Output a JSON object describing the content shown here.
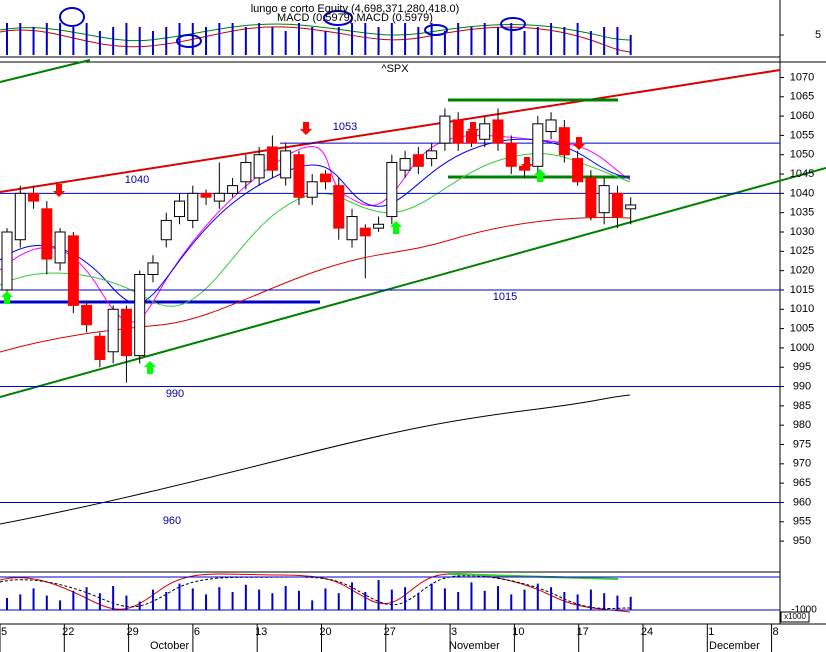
{
  "chart_data": {
    "type": "candlestick",
    "title": "^SPX",
    "top_panel": {
      "labels": [
        "lungo e corto Equity (4,698,371,280,418.0)",
        "MACD (0.5979),MACD (0.5979)"
      ],
      "ylim": [
        0,
        13
      ],
      "yticks": [
        5
      ],
      "color": "#0000cc",
      "values": [
        8,
        8,
        7,
        8,
        8,
        7,
        8,
        6,
        7,
        8,
        7,
        6,
        7,
        8,
        8,
        7,
        8,
        8,
        7,
        8,
        7,
        6,
        8,
        7,
        6,
        7,
        8,
        8,
        7,
        8,
        8,
        7,
        8,
        6,
        8,
        7,
        8,
        7,
        8,
        6,
        7,
        8,
        7,
        8,
        6,
        7,
        7,
        5
      ]
    },
    "bottom_panel": {
      "label": "x1000",
      "ylim": [
        -2000,
        2000
      ],
      "yticks": [
        -1000
      ],
      "color": "#0000cc",
      "values": [
        0,
        300,
        800,
        200,
        -200,
        600,
        900,
        400,
        1000,
        200,
        -300,
        700,
        500,
        1200,
        800,
        300,
        900,
        500,
        1100,
        700,
        400,
        1000,
        600,
        -200,
        800,
        400,
        1300,
        500,
        1500,
        700,
        900,
        400,
        1200,
        800,
        500,
        1300,
        600,
        1000,
        300,
        700,
        1200,
        900,
        500,
        300,
        700,
        400,
        200,
        100
      ]
    },
    "ylim": [
      942,
      1074
    ],
    "yticks": [
      950,
      955,
      960,
      965,
      970,
      975,
      980,
      985,
      990,
      995,
      1000,
      1005,
      1010,
      1015,
      1020,
      1025,
      1030,
      1035,
      1040,
      1045,
      1050,
      1055,
      1060,
      1065,
      1070
    ],
    "levels": [
      1040,
      1053,
      1015,
      990,
      960
    ],
    "xticks": [
      "5",
      "22",
      "29",
      "6",
      "13",
      "20",
      "27",
      "3",
      "10",
      "17",
      "24",
      "1",
      "8"
    ],
    "months": [
      "October",
      "November",
      "December"
    ],
    "up_color": "#ffffff",
    "down_color": "#ff0000",
    "open": [
      1015,
      1028,
      1040,
      1036,
      1022,
      1029,
      1011,
      1003,
      999,
      1010,
      998,
      1019,
      1028,
      1034,
      1033,
      1040,
      1038,
      1040,
      1043,
      1044,
      1052,
      1044,
      1050,
      1039,
      1045,
      1042,
      1028,
      1031,
      1031,
      1034,
      1046,
      1050,
      1049,
      1053,
      1059,
      1056,
      1054,
      1059,
      1053,
      1047,
      1047,
      1056,
      1057,
      1049,
      1044,
      1035,
      1040,
      1036
    ],
    "high": [
      1031,
      1042,
      1042,
      1038,
      1031,
      1030,
      1012,
      1004,
      1011,
      1011,
      1020,
      1024,
      1035,
      1040,
      1042,
      1041,
      1048,
      1044,
      1050,
      1052,
      1055,
      1053,
      1051,
      1045,
      1046,
      1044,
      1036,
      1032,
      1034,
      1050,
      1051,
      1052,
      1053,
      1062,
      1061,
      1058,
      1060,
      1062,
      1055,
      1049,
      1060,
      1061,
      1059,
      1051,
      1046,
      1044,
      1042,
      1039
    ],
    "low": [
      1013,
      1026,
      1036,
      1019,
      1020,
      1009,
      1004,
      995,
      996,
      991,
      996,
      1017,
      1026,
      1032,
      1031,
      1037,
      1036,
      1039,
      1041,
      1042,
      1044,
      1042,
      1037,
      1037,
      1041,
      1028,
      1026,
      1018,
      1030,
      1032,
      1044,
      1045,
      1047,
      1051,
      1051,
      1052,
      1052,
      1051,
      1045,
      1044,
      1045,
      1054,
      1048,
      1042,
      1033,
      1032,
      1031,
      1032
    ],
    "close": [
      1030,
      1040,
      1038,
      1023,
      1030,
      1011,
      1006,
      997,
      1010,
      998,
      1019,
      1022,
      1033,
      1038,
      1040,
      1039,
      1040,
      1042,
      1048,
      1050,
      1046,
      1051,
      1039,
      1043,
      1043,
      1031,
      1034,
      1029,
      1032,
      1048,
      1049,
      1047,
      1051,
      1060,
      1053,
      1053,
      1058,
      1053,
      1047,
      1046,
      1058,
      1059,
      1050,
      1043,
      1034,
      1042,
      1034,
      1037
    ]
  }
}
